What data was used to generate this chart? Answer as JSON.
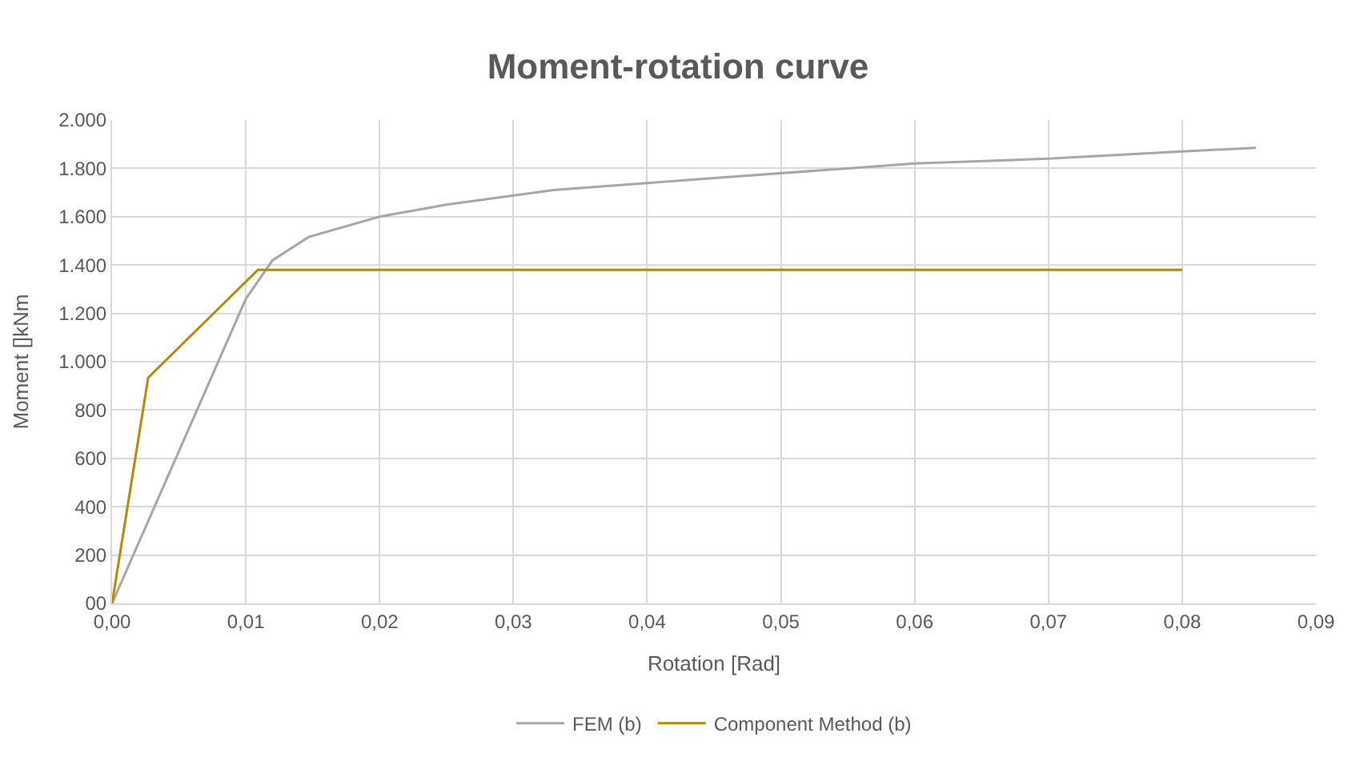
{
  "chart_data": {
    "type": "line",
    "title": "Moment-rotation curve",
    "xlabel": "Rotation [Rad]",
    "ylabel": "Moment []kNm",
    "xlim": [
      0,
      0.09
    ],
    "xticks": [
      {
        "value": 0,
        "label": "0,00"
      },
      {
        "value": 0.01,
        "label": "0,01"
      },
      {
        "value": 0.02,
        "label": "0,02"
      },
      {
        "value": 0.03,
        "label": "0,03"
      },
      {
        "value": 0.04,
        "label": "0,04"
      },
      {
        "value": 0.05,
        "label": "0,05"
      },
      {
        "value": 0.06,
        "label": "0,06"
      },
      {
        "value": 0.07,
        "label": "0,07"
      },
      {
        "value": 0.08,
        "label": "0,08"
      },
      {
        "value": 0.09,
        "label": "0,09"
      }
    ],
    "ylim": [
      0,
      2000
    ],
    "yticks": [
      {
        "value": 0,
        "label": "00"
      },
      {
        "value": 200,
        "label": "200"
      },
      {
        "value": 400,
        "label": "400"
      },
      {
        "value": 600,
        "label": "600"
      },
      {
        "value": 800,
        "label": "800"
      },
      {
        "value": 1000,
        "label": "1.000"
      },
      {
        "value": 1200,
        "label": "1.200"
      },
      {
        "value": 1400,
        "label": "1.400"
      },
      {
        "value": 1600,
        "label": "1.600"
      },
      {
        "value": 1800,
        "label": "1.800"
      },
      {
        "value": 2000,
        "label": "2.000"
      }
    ],
    "grid": true,
    "legend": "bottom",
    "marker": "none",
    "line_style": "solid",
    "series": [
      {
        "name": "FEM (b)",
        "color": "#a6a6a6",
        "x": [
          0,
          0.01,
          0.012,
          0.0147,
          0.02,
          0.025,
          0.033,
          0.045,
          0.055,
          0.06,
          0.07,
          0.08,
          0.0855
        ],
        "values": [
          0,
          1260,
          1420,
          1516,
          1600,
          1650,
          1710,
          1760,
          1800,
          1820,
          1840,
          1870,
          1885
        ]
      },
      {
        "name": "Component Method (b)",
        "color": "#b58a00",
        "x": [
          0,
          0.0027,
          0.0109,
          0.08
        ],
        "values": [
          0,
          934,
          1380,
          1380
        ]
      }
    ]
  }
}
